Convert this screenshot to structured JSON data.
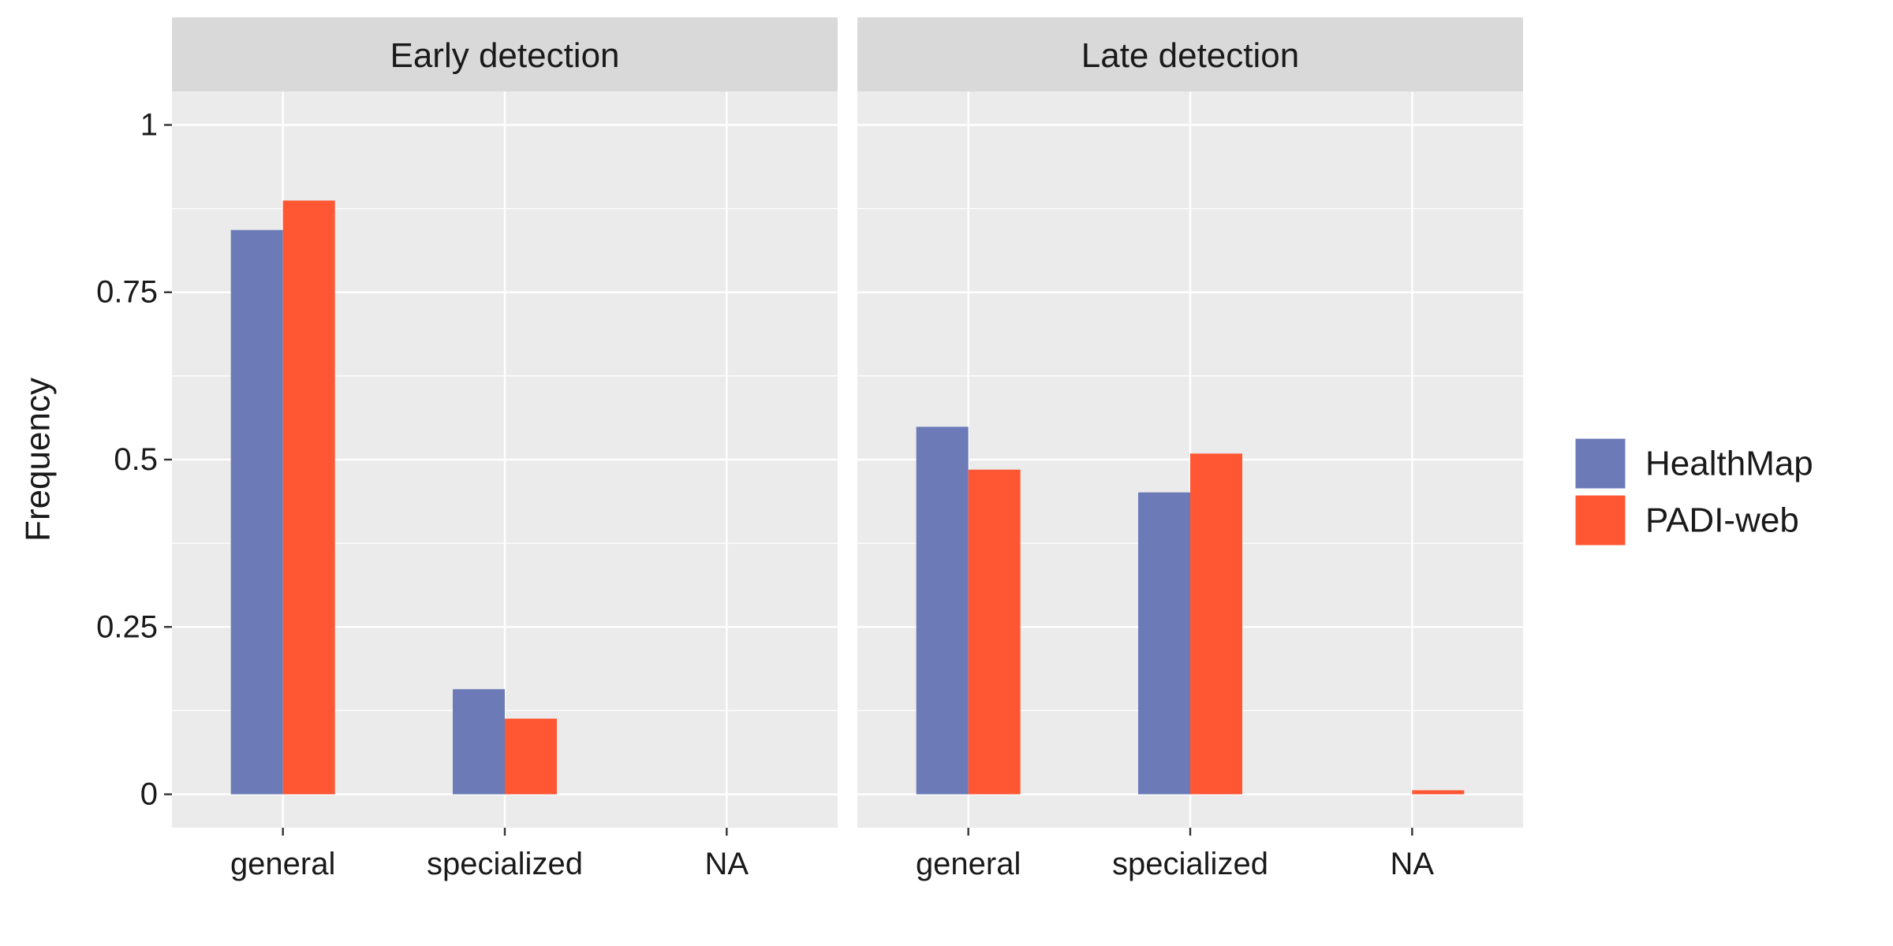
{
  "chart_data": {
    "type": "bar",
    "ylabel": "Frequency",
    "ylim": [
      -0.05,
      1.05
    ],
    "yticks": [
      0,
      0.25,
      0.5,
      0.75,
      1
    ],
    "ytick_labels": [
      "0",
      "0.25",
      "0.5",
      "0.75",
      "1"
    ],
    "categories": [
      "general",
      "specialized",
      "NA"
    ],
    "legend_position": "right",
    "grid": true,
    "series_colors": {
      "HealthMap": "#6C7BB8",
      "PADI-web": "#FF5733"
    },
    "panel_bg": "#EBEBEB",
    "strip_bg": "#D9D9D9",
    "legend": [
      {
        "name": "HealthMap",
        "color": "#6C7BB8"
      },
      {
        "name": "PADI-web",
        "color": "#FF5733"
      }
    ],
    "panels": [
      {
        "title": "Early detection",
        "series": [
          {
            "name": "HealthMap",
            "values": [
              0.843,
              0.157,
              null
            ]
          },
          {
            "name": "PADI-web",
            "values": [
              0.887,
              0.113,
              null
            ]
          }
        ]
      },
      {
        "title": "Late detection",
        "series": [
          {
            "name": "HealthMap",
            "values": [
              0.549,
              0.451,
              null
            ]
          },
          {
            "name": "PADI-web",
            "values": [
              0.485,
              0.509,
              0.006
            ]
          }
        ]
      }
    ]
  }
}
